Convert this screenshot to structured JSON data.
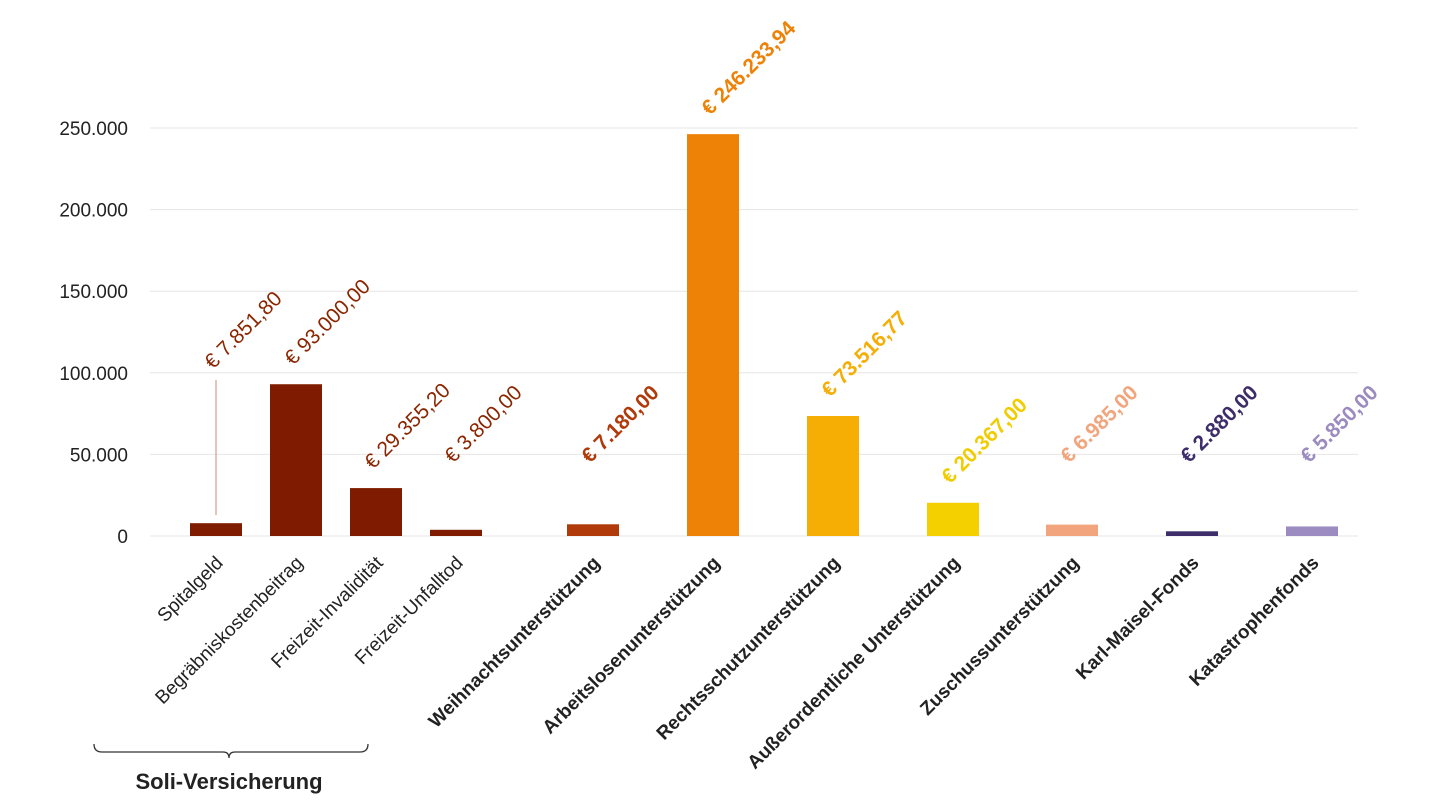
{
  "chart_data": {
    "type": "bar",
    "title": "",
    "xlabel": "",
    "ylabel": "",
    "ylim": [
      0,
      250000
    ],
    "yticks": [
      0,
      50000,
      100000,
      150000,
      200000,
      250000
    ],
    "ytick_labels": [
      "0",
      "50.000",
      "100.000",
      "150.000",
      "200.000",
      "250.000"
    ],
    "grid": true,
    "categories": [
      {
        "label": "Spitalgeld",
        "value": 7851.8,
        "value_label": "€ 7.851,80",
        "color": "#7f1b00",
        "label_color": "#8b2500",
        "bold": false,
        "group": "Soli-Versicherung"
      },
      {
        "label": "Begräbniskostenbeitrag",
        "value": 93000.0,
        "value_label": "€ 93.000,00",
        "color": "#7f1b00",
        "label_color": "#8b2500",
        "bold": false,
        "group": "Soli-Versicherung"
      },
      {
        "label": "Freizeit-Invalidität",
        "value": 29355.2,
        "value_label": "€ 29.355,20",
        "color": "#7f1b00",
        "label_color": "#8b2500",
        "bold": false,
        "group": "Soli-Versicherung"
      },
      {
        "label": "Freizeit-Unfalltod",
        "value": 3800.0,
        "value_label": "€ 3.800,00",
        "color": "#7f1b00",
        "label_color": "#8b2500",
        "bold": false,
        "group": "Soli-Versicherung"
      },
      {
        "label": "Weihnachtsunterstützung",
        "value": 7180.0,
        "value_label": "€ 7.180,00",
        "color": "#b03a0a",
        "label_color": "#b03a0a",
        "bold": true,
        "group": ""
      },
      {
        "label": "Arbeitslosenunterstützung",
        "value": 246233.94,
        "value_label": "€ 246.233,94",
        "color": "#ee8207",
        "label_color": "#ee8207",
        "bold": true,
        "group": ""
      },
      {
        "label": "Rechtsschutzunterstützung",
        "value": 73516.77,
        "value_label": "€ 73.516,77",
        "color": "#f6ad04",
        "label_color": "#f6ad04",
        "bold": true,
        "group": ""
      },
      {
        "label": "Außerordentliche Unterstützung",
        "value": 20367.0,
        "value_label": "€ 20.367,00",
        "color": "#f5d000",
        "label_color": "#f0cc00",
        "bold": true,
        "group": ""
      },
      {
        "label": "Zuschussunterstützung",
        "value": 6985.0,
        "value_label": "€ 6.985,00",
        "color": "#f2a57c",
        "label_color": "#f2a57c",
        "bold": true,
        "group": ""
      },
      {
        "label": "Karl-Maisel-Fonds",
        "value": 2880.0,
        "value_label": "€ 2.880,00",
        "color": "#3e2d6b",
        "label_color": "#3e2d6b",
        "bold": true,
        "group": ""
      },
      {
        "label": "Katastrophenfonds",
        "value": 5850.0,
        "value_label": "€ 5.850,00",
        "color": "#9b8bc0",
        "label_color": "#9b8bc0",
        "bold": true,
        "group": ""
      }
    ],
    "groups": [
      {
        "label": "Soli-Versicherung",
        "from_index": 0,
        "to_index": 3
      }
    ]
  }
}
